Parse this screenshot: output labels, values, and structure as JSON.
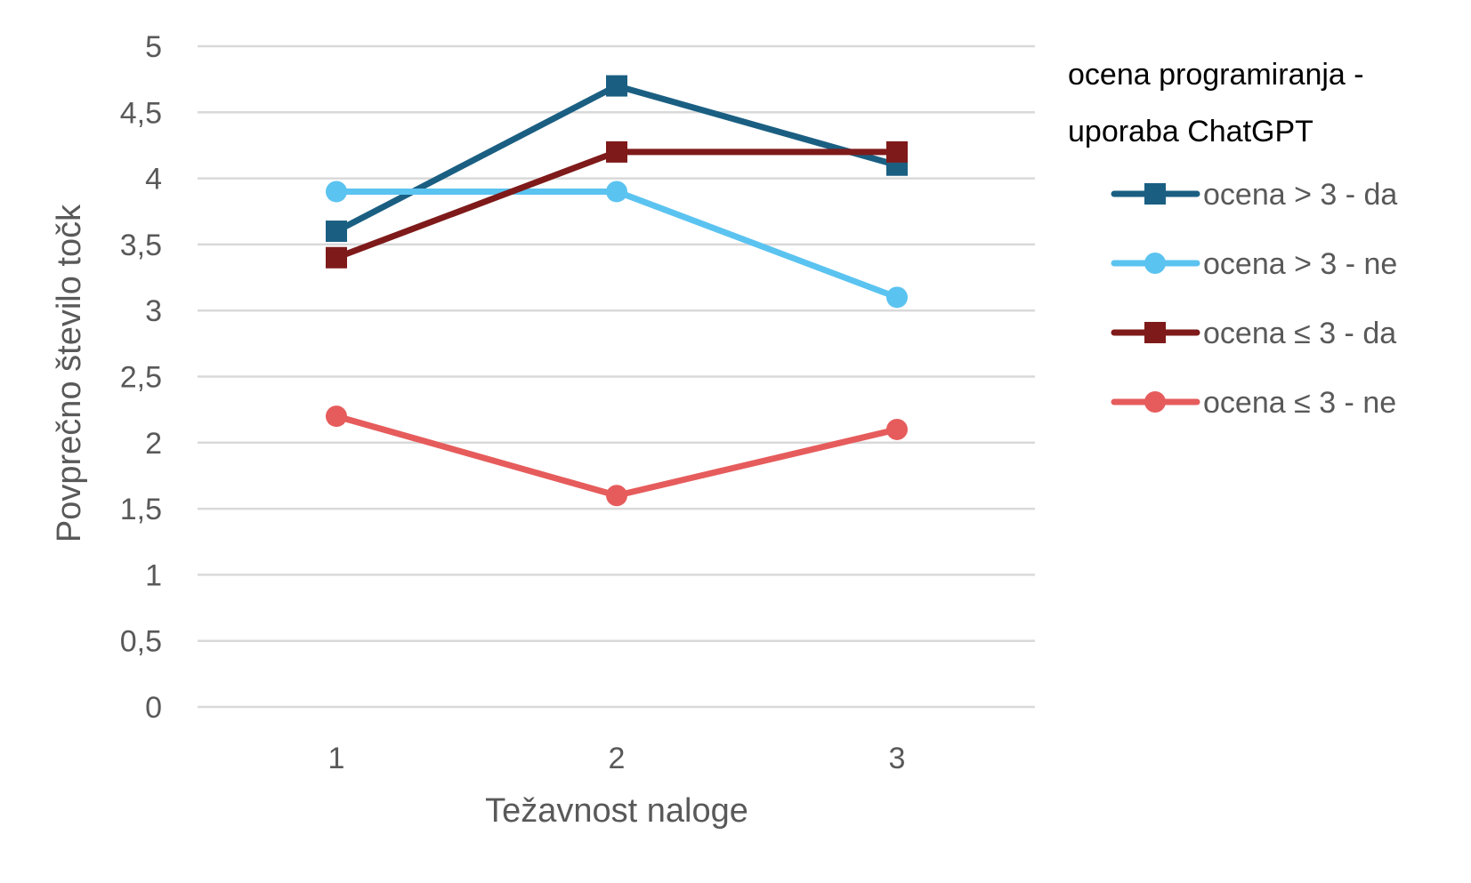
{
  "chart_data": {
    "type": "line",
    "x": [
      1,
      2,
      3
    ],
    "categories": [
      "1",
      "2",
      "3"
    ],
    "xlabel": "Težavnost naloge",
    "ylabel": "Povprečno število točk",
    "ylim": [
      0,
      5
    ],
    "yticks": [
      "0",
      "0,5",
      "1",
      "1,5",
      "2",
      "2,5",
      "3",
      "3,5",
      "4",
      "4,5",
      "5"
    ],
    "grid": true,
    "legend": {
      "placement": "right",
      "title_lines": [
        "ocena programiranja -",
        "uporaba ChatGPT"
      ]
    },
    "series": [
      {
        "name": "ocena > 3 - da",
        "values": [
          3.6,
          4.7,
          4.1
        ],
        "color": "#1a5f82",
        "marker": "square"
      },
      {
        "name": "ocena > 3 - ne",
        "values": [
          3.9,
          3.9,
          3.1
        ],
        "color": "#5bc3f0",
        "marker": "circle"
      },
      {
        "name": "ocena ≤ 3 - da",
        "values": [
          3.4,
          4.2,
          4.2
        ],
        "color": "#7f1a1a",
        "marker": "square"
      },
      {
        "name": "ocena ≤ 3 - ne",
        "values": [
          2.2,
          1.6,
          2.1
        ],
        "color": "#e65c5c",
        "marker": "circle"
      }
    ]
  }
}
